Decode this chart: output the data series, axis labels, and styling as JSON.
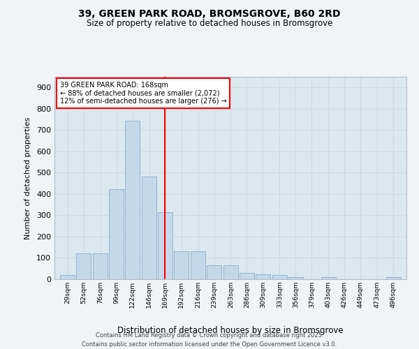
{
  "title": "39, GREEN PARK ROAD, BROMSGROVE, B60 2RD",
  "subtitle": "Size of property relative to detached houses in Bromsgrove",
  "xlabel": "Distribution of detached houses by size in Bromsgrove",
  "ylabel": "Number of detached properties",
  "footer_line1": "Contains HM Land Registry data © Crown copyright and database right 2025.",
  "footer_line2": "Contains public sector information licensed under the Open Government Licence v3.0.",
  "annotation_line1": "39 GREEN PARK ROAD: 168sqm",
  "annotation_line2": "← 88% of detached houses are smaller (2,072)",
  "annotation_line3": "12% of semi-detached houses are larger (276) →",
  "property_line_x": 168,
  "bar_color": "#c5d8ea",
  "bar_edge_color": "#88adc8",
  "grid_color": "#d0d8e0",
  "bg_color": "#dce8f0",
  "fig_bg_color": "#f0f4f8",
  "categories": [
    29,
    52,
    76,
    99,
    122,
    146,
    169,
    192,
    216,
    239,
    263,
    286,
    309,
    333,
    356,
    379,
    403,
    426,
    449,
    473,
    496
  ],
  "values": [
    20,
    122,
    122,
    422,
    742,
    483,
    316,
    132,
    132,
    66,
    66,
    28,
    22,
    20,
    11,
    0,
    9,
    0,
    0,
    0,
    9
  ],
  "ylim": [
    0,
    950
  ],
  "yticks": [
    0,
    100,
    200,
    300,
    400,
    500,
    600,
    700,
    800,
    900
  ],
  "xlim_left": 10,
  "xlim_right": 515
}
